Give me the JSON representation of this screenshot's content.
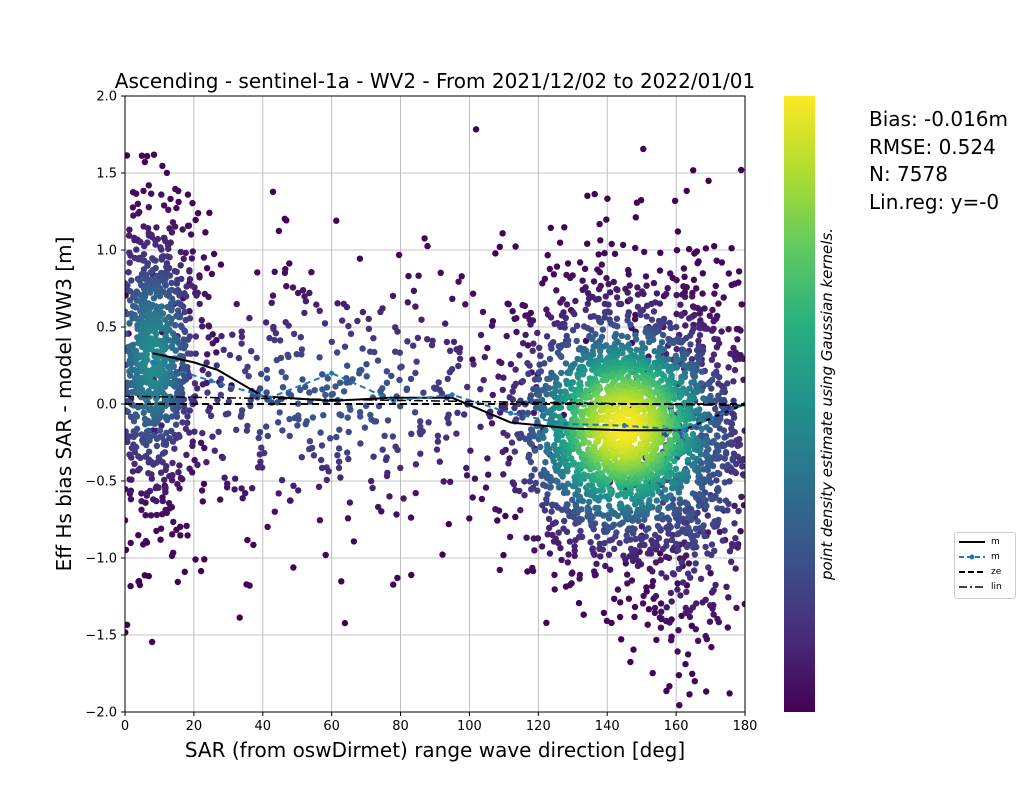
{
  "stats": {
    "bias": "Bias: -0.016m",
    "rmse": "RMSE: 0.524",
    "n": "N: 7578",
    "linreg": "Lin.reg: y=-0"
  },
  "legend": {
    "items": [
      {
        "label": "m",
        "style": "solid",
        "color": "#000000"
      },
      {
        "label": "m",
        "style": "dashed-marker",
        "color": "#1f77b4"
      },
      {
        "label": "ze",
        "style": "dashed",
        "color": "#000000"
      },
      {
        "label": "lin",
        "style": "dashdot",
        "color": "#000000"
      }
    ]
  },
  "colorbar": {
    "label": "point density estimate using Gaussian kernels.",
    "colormap": "viridis"
  },
  "chart_data": {
    "type": "scatter",
    "title": "Ascending - sentinel-1a - WV2 - From 2021/12/02 to 2022/01/01",
    "xlabel": "SAR (from oswDirmet) range wave direction [deg]",
    "ylabel": "Eff Hs bias SAR - model WW3 [m]",
    "xlim": [
      0,
      180
    ],
    "ylim": [
      -2.0,
      2.0
    ],
    "xticks": [
      0,
      20,
      40,
      60,
      80,
      100,
      120,
      140,
      160,
      180
    ],
    "yticks": [
      -2.0,
      -1.5,
      -1.0,
      -0.5,
      0.0,
      0.5,
      1.0,
      1.5,
      2.0
    ],
    "grid": true,
    "n_points": 7578,
    "clusters": [
      {
        "center_x": 8,
        "center_y": 0.3,
        "spread_x": 7,
        "spread_y": 0.4,
        "weight": 0.22
      },
      {
        "center_x": 145,
        "center_y": -0.15,
        "spread_x": 15,
        "spread_y": 0.35,
        "weight": 0.55
      },
      {
        "center_x": 165,
        "center_y": -0.4,
        "spread_x": 10,
        "spread_y": 0.5,
        "weight": 0.12
      },
      {
        "center_x": 60,
        "center_y": 0.05,
        "spread_x": 30,
        "spread_y": 0.35,
        "weight": 0.11
      }
    ],
    "lines": [
      {
        "name": "",
        "style": "solid",
        "color": "#000000",
        "x": [
          8,
          20,
          27,
          40,
          60,
          77,
          95,
          112,
          130,
          145,
          162,
          180
        ],
        "y": [
          0.33,
          0.27,
          0.22,
          0.05,
          0.02,
          0.04,
          0.04,
          -0.12,
          -0.16,
          -0.17,
          -0.17,
          0.0
        ]
      },
      {
        "name": "",
        "style": "dashed-marker",
        "color": "#1f77b4",
        "x": [
          8,
          25,
          42,
          60,
          78,
          95,
          112,
          128,
          145,
          162,
          180
        ],
        "y": [
          0.27,
          0.15,
          0.04,
          0.2,
          0.02,
          0.06,
          -0.06,
          -0.13,
          -0.14,
          -0.17,
          0.0
        ]
      },
      {
        "name": "",
        "style": "dashed",
        "color": "#000000",
        "x": [
          0,
          180
        ],
        "y": [
          0.0,
          0.0
        ]
      },
      {
        "name": "",
        "style": "dashdot",
        "color": "#000000",
        "x": [
          0,
          180
        ],
        "y": [
          0.05,
          -0.01
        ]
      }
    ]
  }
}
